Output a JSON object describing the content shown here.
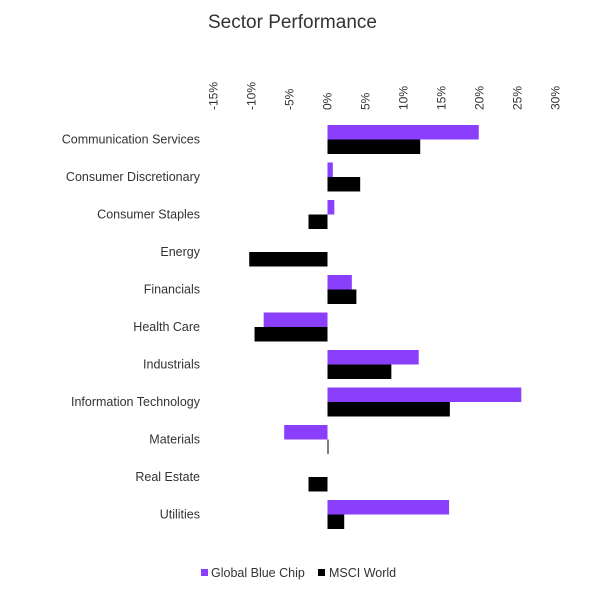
{
  "chart_data": {
    "type": "bar",
    "orientation": "horizontal",
    "title": "Sector Performance",
    "xlabel": "",
    "ylabel": "",
    "xlim": [
      -15,
      30
    ],
    "x_ticks": [
      "-15%",
      "-10%",
      "-5%",
      "0%",
      "5%",
      "10%",
      "15%",
      "20%",
      "25%",
      "30%"
    ],
    "x_tick_values": [
      -15,
      -10,
      -5,
      0,
      5,
      10,
      15,
      20,
      25,
      30
    ],
    "x_axis_position": "top",
    "grid": false,
    "legend_position": "bottom",
    "categories": [
      "Communication Services",
      "Consumer Discretionary",
      "Consumer Staples",
      "Energy",
      "Financials",
      "Health Care",
      "Industrials",
      "Information Technology",
      "Materials",
      "Real Estate",
      "Utilities"
    ],
    "series": [
      {
        "name": "Global Blue Chip",
        "color": "#8a3ffc",
        "values": [
          19.9,
          0.7,
          0.9,
          0.0,
          3.2,
          -8.4,
          12.0,
          25.5,
          -5.7,
          0.0,
          16.0
        ]
      },
      {
        "name": "MSCI World",
        "color": "#000000",
        "values": [
          12.2,
          4.3,
          -2.5,
          -10.3,
          3.8,
          -9.6,
          8.4,
          16.1,
          0.1,
          -2.5,
          2.2
        ]
      }
    ]
  }
}
